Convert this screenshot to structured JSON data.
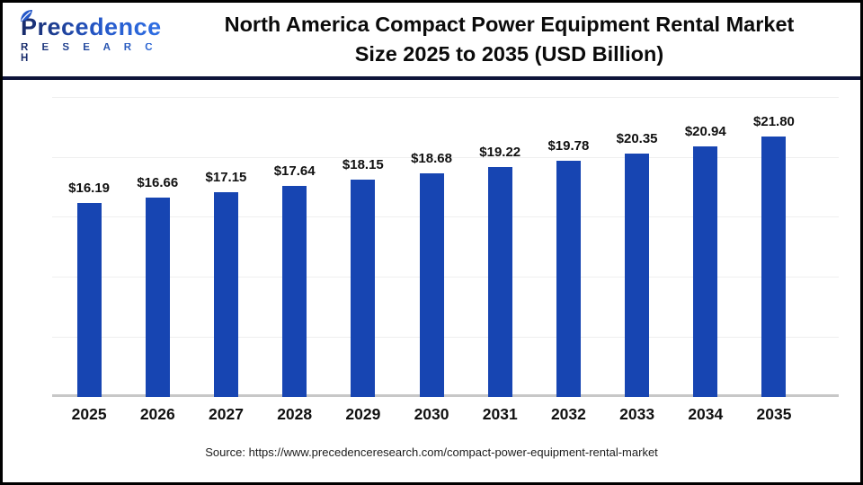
{
  "header": {
    "logo_name": "Precedence",
    "logo_subtext": "R E S E A R C H",
    "title_line1": "North America Compact Power Equipment Rental Market",
    "title_line2": "Size 2025 to 2035 (USD Billion)"
  },
  "chart_data": {
    "type": "bar",
    "title": "North America Compact Power Equipment Rental Market Size 2025 to 2035 (USD Billion)",
    "categories": [
      "2025",
      "2026",
      "2027",
      "2028",
      "2029",
      "2030",
      "2031",
      "2032",
      "2033",
      "2034",
      "2035"
    ],
    "values": [
      16.19,
      16.66,
      17.15,
      17.64,
      18.15,
      18.68,
      19.22,
      19.78,
      20.35,
      20.94,
      21.8
    ],
    "value_labels": [
      "$16.19",
      "$16.66",
      "$17.15",
      "$17.64",
      "$18.15",
      "$18.68",
      "$19.22",
      "$19.78",
      "$20.35",
      "$20.94",
      "$21.80"
    ],
    "xlabel": "",
    "ylabel": "",
    "unit": "USD Billion",
    "ylim": [
      0,
      26.5
    ],
    "grid": true,
    "grid_step": 5,
    "legend": "none",
    "bar_color": "#1745b2",
    "grid_color": "#efefef",
    "axis_line_color": "#c7c7c7"
  },
  "footer": {
    "source": "Source: https://www.precedenceresearch.com/compact-power-equipment-rental-market"
  }
}
